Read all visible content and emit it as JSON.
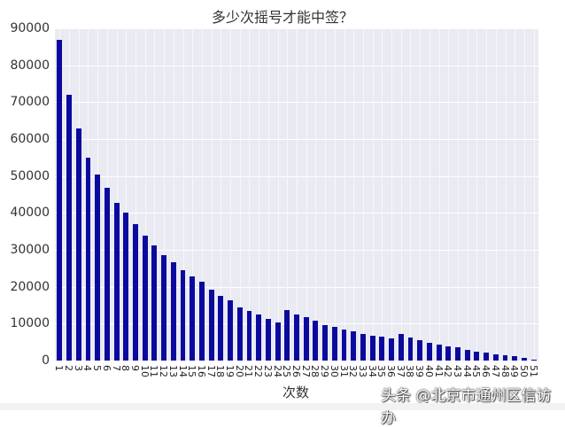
{
  "chart_data": {
    "type": "bar",
    "title": "多少次摇号才能中签？",
    "xlabel": "次数",
    "ylabel": "",
    "ylim": [
      0,
      90000
    ],
    "yticks": [
      0,
      10000,
      20000,
      30000,
      40000,
      50000,
      60000,
      70000,
      80000,
      90000
    ],
    "grid": true,
    "legend": null,
    "bar_color": "#0a0a9e",
    "categories": [
      "1",
      "2",
      "3",
      "4",
      "5",
      "6",
      "7",
      "8",
      "9",
      "10",
      "11",
      "12",
      "13",
      "14",
      "15",
      "16",
      "17",
      "18",
      "19",
      "20",
      "21",
      "22",
      "23",
      "24",
      "25",
      "26",
      "27",
      "28",
      "29",
      "30",
      "31",
      "32",
      "33",
      "34",
      "35",
      "36",
      "37",
      "38",
      "39",
      "40",
      "41",
      "42",
      "43",
      "44",
      "45",
      "46",
      "47",
      "48",
      "49",
      "50",
      "51"
    ],
    "values": [
      87000,
      72000,
      63000,
      55000,
      50500,
      46800,
      42700,
      40000,
      36900,
      33800,
      31200,
      28500,
      26600,
      24500,
      22800,
      21300,
      19200,
      17500,
      16300,
      14400,
      13400,
      12500,
      11300,
      10400,
      13700,
      12500,
      11800,
      10800,
      9600,
      9100,
      8400,
      7900,
      7300,
      6700,
      6400,
      5900,
      7100,
      6200,
      5500,
      4900,
      4300,
      3900,
      3500,
      3000,
      2500,
      2100,
      1800,
      1400,
      1100,
      700,
      300
    ]
  },
  "watermark": "头条 @北京市通州区信访办"
}
